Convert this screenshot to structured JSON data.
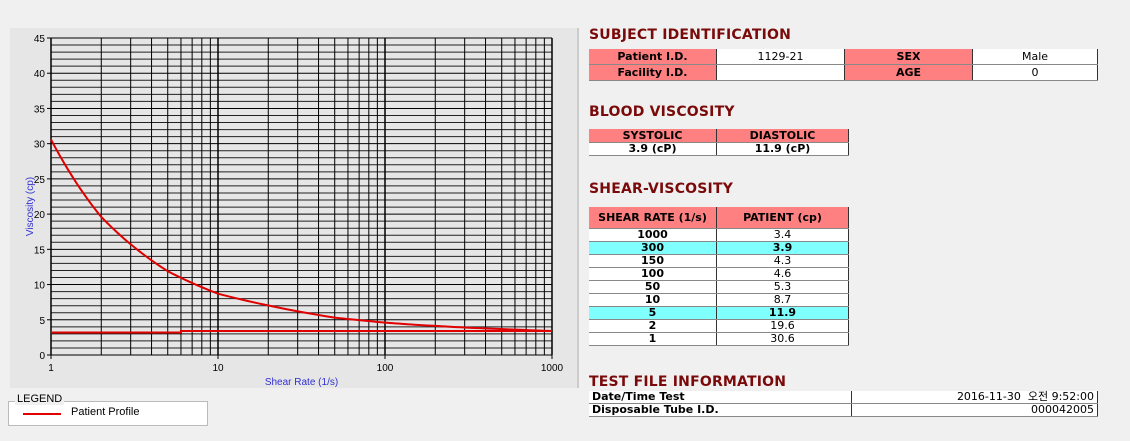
{
  "chart_data": {
    "type": "line",
    "xlabel": "Shear Rate (1/s)",
    "ylabel": "Viscosity (cp)",
    "xscale": "log",
    "xlim": [
      1,
      1000
    ],
    "ylim": [
      0,
      45
    ],
    "x_ticks": [
      "1",
      "10",
      "100",
      "1000"
    ],
    "y_ticks": [
      "0",
      "5",
      "10",
      "15",
      "20",
      "25",
      "30",
      "35",
      "40",
      "45"
    ],
    "grid": true,
    "series": [
      {
        "name": "Patient Profile",
        "color": "#e00000",
        "x": [
          1,
          2,
          5,
          10,
          50,
          100,
          150,
          300,
          1000
        ],
        "y": [
          30.6,
          19.6,
          11.9,
          8.7,
          5.3,
          4.6,
          4.3,
          3.9,
          3.4
        ]
      },
      {
        "color": "#e00000",
        "x": [
          1,
          6,
          6,
          1000
        ],
        "y": [
          3.2,
          3.2,
          3.4,
          3.4
        ]
      }
    ],
    "legend": {
      "title": "LEGEND",
      "placement": "bottom-left",
      "entries": [
        "Patient Profile"
      ]
    }
  },
  "subject": {
    "title": "SUBJECT IDENTIFICATION",
    "patient_id_label": "Patient I.D.",
    "patient_id": "1129-21",
    "sex_label": "SEX",
    "sex": "Male",
    "facility_id_label": "Facility I.D.",
    "facility_id": "",
    "age_label": "AGE",
    "age": "0"
  },
  "blood": {
    "title": "BLOOD VISCOSITY",
    "systolic_label": "SYSTOLIC",
    "diastolic_label": "DIASTOLIC",
    "systolic": "3.9 (cP)",
    "diastolic": "11.9 (cP)"
  },
  "shear": {
    "title": "SHEAR-VISCOSITY",
    "headers": [
      "SHEAR RATE (1/s)",
      "PATIENT (cp)"
    ],
    "highlight_color": "#80ffff",
    "rows": [
      {
        "rate": "1000",
        "value": "3.4",
        "highlight": false
      },
      {
        "rate": "300",
        "value": "3.9",
        "highlight": true
      },
      {
        "rate": "150",
        "value": "4.3",
        "highlight": false
      },
      {
        "rate": "100",
        "value": "4.6",
        "highlight": false
      },
      {
        "rate": "50",
        "value": "5.3",
        "highlight": false
      },
      {
        "rate": "10",
        "value": "8.7",
        "highlight": false
      },
      {
        "rate": "5",
        "value": "11.9",
        "highlight": true
      },
      {
        "rate": "2",
        "value": "19.6",
        "highlight": false
      },
      {
        "rate": "1",
        "value": "30.6",
        "highlight": false
      }
    ]
  },
  "testfile": {
    "title": "TEST FILE INFORMATION",
    "datetime_label": "Date/Time Test",
    "datetime": "2016-11-30  오전 9:52:00",
    "tube_label": "Disposable Tube I.D.",
    "tube": "000042005"
  }
}
